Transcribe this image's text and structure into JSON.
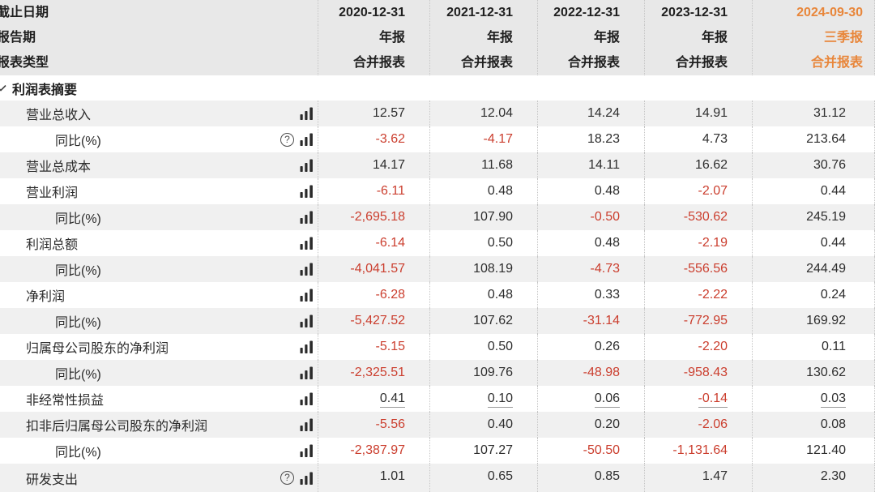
{
  "table": {
    "header": {
      "rows": [
        {
          "label": "截止日期",
          "values": [
            "2020-12-31",
            "2021-12-31",
            "2022-12-31",
            "2023-12-31",
            "2024-09-30"
          ]
        },
        {
          "label": "报告期",
          "values": [
            "年报",
            "年报",
            "年报",
            "年报",
            "三季报"
          ]
        },
        {
          "label": "报表类型",
          "values": [
            "合并报表",
            "合并报表",
            "合并报表",
            "合并报表",
            "合并报表"
          ]
        }
      ],
      "highlight_column_index": 4
    },
    "section": {
      "title": "利润表摘要"
    },
    "rows": [
      {
        "label": "营业总收入",
        "indent": 1,
        "help": false,
        "underline": false,
        "values": [
          "12.57",
          "12.04",
          "14.24",
          "14.91",
          "31.12"
        ]
      },
      {
        "label": "同比(%)",
        "indent": 2,
        "help": true,
        "underline": false,
        "values": [
          "-3.62",
          "-4.17",
          "18.23",
          "4.73",
          "213.64"
        ]
      },
      {
        "label": "营业总成本",
        "indent": 1,
        "help": false,
        "underline": false,
        "values": [
          "14.17",
          "11.68",
          "14.11",
          "16.62",
          "30.76"
        ]
      },
      {
        "label": "营业利润",
        "indent": 1,
        "help": false,
        "underline": false,
        "values": [
          "-6.11",
          "0.48",
          "0.48",
          "-2.07",
          "0.44"
        ]
      },
      {
        "label": "同比(%)",
        "indent": 2,
        "help": false,
        "underline": false,
        "values": [
          "-2,695.18",
          "107.90",
          "-0.50",
          "-530.62",
          "245.19"
        ]
      },
      {
        "label": "利润总额",
        "indent": 1,
        "help": false,
        "underline": false,
        "values": [
          "-6.14",
          "0.50",
          "0.48",
          "-2.19",
          "0.44"
        ]
      },
      {
        "label": "同比(%)",
        "indent": 2,
        "help": false,
        "underline": false,
        "values": [
          "-4,041.57",
          "108.19",
          "-4.73",
          "-556.56",
          "244.49"
        ]
      },
      {
        "label": "净利润",
        "indent": 1,
        "help": false,
        "underline": false,
        "values": [
          "-6.28",
          "0.48",
          "0.33",
          "-2.22",
          "0.24"
        ]
      },
      {
        "label": "同比(%)",
        "indent": 2,
        "help": false,
        "underline": false,
        "values": [
          "-5,427.52",
          "107.62",
          "-31.14",
          "-772.95",
          "169.92"
        ]
      },
      {
        "label": "归属母公司股东的净利润",
        "indent": 1,
        "help": false,
        "underline": false,
        "values": [
          "-5.15",
          "0.50",
          "0.26",
          "-2.20",
          "0.11"
        ]
      },
      {
        "label": "同比(%)",
        "indent": 2,
        "help": false,
        "underline": false,
        "values": [
          "-2,325.51",
          "109.76",
          "-48.98",
          "-958.43",
          "130.62"
        ]
      },
      {
        "label": "非经常性损益",
        "indent": 1,
        "help": false,
        "underline": true,
        "values": [
          "0.41",
          "0.10",
          "0.06",
          "-0.14",
          "0.03"
        ]
      },
      {
        "label": "扣非后归属母公司股东的净利润",
        "indent": 1,
        "help": false,
        "underline": false,
        "values": [
          "-5.56",
          "0.40",
          "0.20",
          "-2.06",
          "0.08"
        ]
      },
      {
        "label": "同比(%)",
        "indent": 2,
        "help": false,
        "underline": false,
        "values": [
          "-2,387.97",
          "107.27",
          "-50.50",
          "-1,131.64",
          "121.40"
        ]
      },
      {
        "label": "研发支出",
        "indent": 1,
        "help": true,
        "underline": false,
        "values": [
          "1.01",
          "0.65",
          "0.85",
          "1.47",
          "2.30"
        ]
      }
    ],
    "icons": {
      "row_chart_icon": "bar-chart-icon",
      "tooltip_icon": "help-icon",
      "section_icon": "chevron-down-icon",
      "help_glyph": "?"
    }
  },
  "colors": {
    "negative_value": "#cb3e2e",
    "highlight_column": "#e8863a",
    "row_stripe": "#f0f0f0",
    "header_background": "#e8e8e8"
  }
}
